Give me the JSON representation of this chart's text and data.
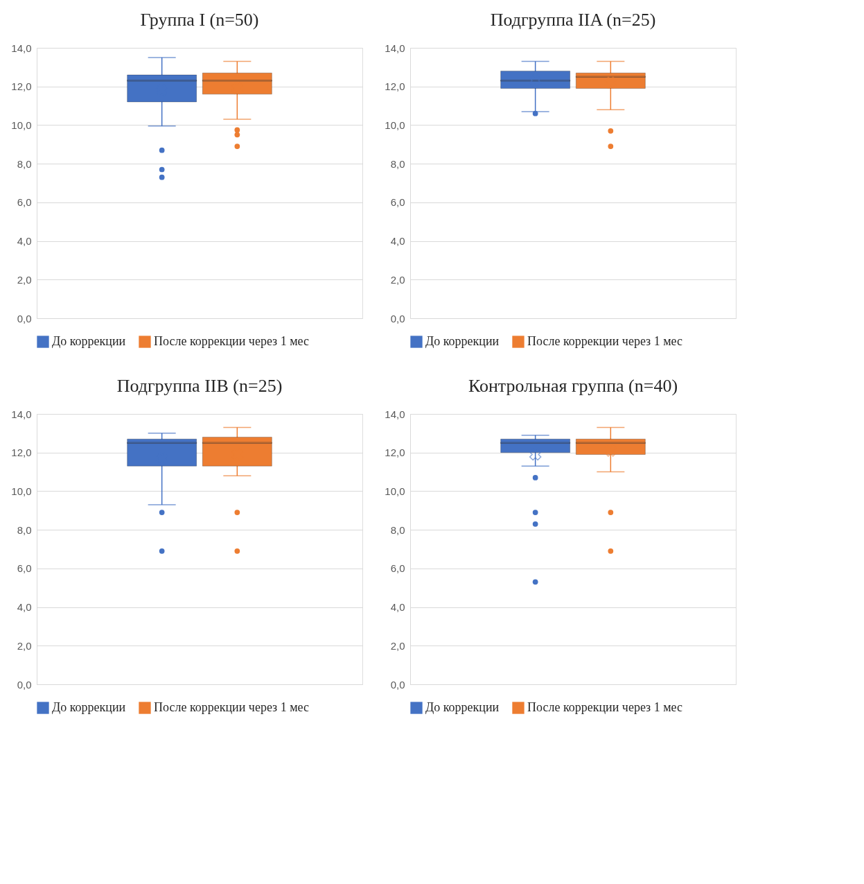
{
  "chart_data": [
    {
      "type": "box",
      "title": "Группа I (n=50)",
      "categories": [
        null
      ],
      "ylim": [
        0,
        14
      ],
      "yticks": [
        {
          "value": 0,
          "label": "0,0"
        },
        {
          "value": 2,
          "label": "2,0"
        },
        {
          "value": 4,
          "label": "4,0"
        },
        {
          "value": 6,
          "label": "6,0"
        },
        {
          "value": 8,
          "label": "8,0"
        },
        {
          "value": 10,
          "label": "10,0"
        },
        {
          "value": 12,
          "label": "12,0"
        },
        {
          "value": 14,
          "label": "14,0"
        }
      ],
      "grid": "y",
      "legend": "bottom",
      "tick_labels": "y",
      "series": [
        {
          "name": "До коррекции",
          "color": "#4472c4",
          "boxes": [
            {
              "low": 9.95,
              "q1": 11.2,
              "median": 12.3,
              "q3": 12.6,
              "high": 13.5,
              "mean": 11.8,
              "outliers": [
                8.7,
                7.7,
                7.3
              ]
            }
          ]
        },
        {
          "name": "После коррекции через 1 мес",
          "color": "#ed7d31",
          "boxes": [
            {
              "low": 10.3,
              "q1": 11.6,
              "median": 12.3,
              "q3": 12.7,
              "high": 13.3,
              "mean": 11.9,
              "outliers": [
                9.75,
                9.5,
                8.9
              ]
            }
          ]
        }
      ]
    },
    {
      "type": "box",
      "title": "Подгруппа IIA (n=25)",
      "categories": [
        null
      ],
      "ylim": [
        0,
        14
      ],
      "yticks": [
        {
          "value": 0,
          "label": "0,0"
        },
        {
          "value": 2,
          "label": "2,0"
        },
        {
          "value": 4,
          "label": "4,0"
        },
        {
          "value": 6,
          "label": "6,0"
        },
        {
          "value": 8,
          "label": "8,0"
        },
        {
          "value": 10,
          "label": "10,0"
        },
        {
          "value": 12,
          "label": "12,0"
        },
        {
          "value": 14,
          "label": "14,0"
        }
      ],
      "grid": "y",
      "legend": "bottom",
      "tick_labels": "y",
      "series": [
        {
          "name": "До коррекции",
          "color": "#4472c4",
          "boxes": [
            {
              "low": 10.7,
              "q1": 11.9,
              "median": 12.3,
              "q3": 12.8,
              "high": 13.3,
              "mean": 12.3,
              "outliers": [
                10.6
              ]
            }
          ]
        },
        {
          "name": "После коррекции через 1 мес",
          "color": "#ed7d31",
          "boxes": [
            {
              "low": 10.8,
              "q1": 11.9,
              "median": 12.5,
              "q3": 12.7,
              "high": 13.3,
              "mean": 12.2,
              "outliers": [
                9.7,
                8.9
              ]
            }
          ]
        }
      ]
    },
    {
      "type": "box",
      "title": "Подгруппа IIB (n=25)",
      "categories": [
        null
      ],
      "ylim": [
        0,
        14
      ],
      "yticks": [
        {
          "value": 0,
          "label": "0,0"
        },
        {
          "value": 2,
          "label": "2,0"
        },
        {
          "value": 4,
          "label": "4,0"
        },
        {
          "value": 6,
          "label": "6,0"
        },
        {
          "value": 8,
          "label": "8,0"
        },
        {
          "value": 10,
          "label": "10,0"
        },
        {
          "value": 12,
          "label": "12,0"
        },
        {
          "value": 14,
          "label": "14,0"
        }
      ],
      "grid": "y",
      "legend": "bottom",
      "tick_labels": "y",
      "series": [
        {
          "name": "До коррекции",
          "color": "#4472c4",
          "boxes": [
            {
              "low": 9.3,
              "q1": 11.3,
              "median": 12.5,
              "q3": 12.7,
              "high": 13.0,
              "mean": 11.7,
              "outliers": [
                8.9,
                6.9
              ]
            }
          ]
        },
        {
          "name": "После коррекции через 1 мес",
          "color": "#ed7d31",
          "boxes": [
            {
              "low": 10.8,
              "q1": 11.3,
              "median": 12.5,
              "q3": 12.8,
              "high": 13.3,
              "mean": 11.9,
              "outliers": [
                8.9,
                6.9
              ]
            }
          ]
        }
      ]
    },
    {
      "type": "box",
      "title": "Контрольная группа (n=40)",
      "categories": [
        null
      ],
      "ylim": [
        0,
        14
      ],
      "yticks": [
        {
          "value": 0,
          "label": "0,0"
        },
        {
          "value": 2,
          "label": "2,0"
        },
        {
          "value": 4,
          "label": "4,0"
        },
        {
          "value": 6,
          "label": "6,0"
        },
        {
          "value": 8,
          "label": "8,0"
        },
        {
          "value": 10,
          "label": "10,0"
        },
        {
          "value": 12,
          "label": "12,0"
        },
        {
          "value": 14,
          "label": "14,0"
        }
      ],
      "grid": "y",
      "legend": "bottom",
      "tick_labels": "y",
      "series": [
        {
          "name": "До коррекции",
          "color": "#4472c4",
          "boxes": [
            {
              "low": 11.3,
              "q1": 12.0,
              "median": 12.5,
              "q3": 12.7,
              "high": 12.9,
              "mean": 11.9,
              "outliers": [
                10.7,
                8.9,
                8.3,
                5.3
              ]
            }
          ]
        },
        {
          "name": "После коррекции через 1 мес",
          "color": "#ed7d31",
          "boxes": [
            {
              "low": 11.0,
              "q1": 11.9,
              "median": 12.5,
              "q3": 12.7,
              "high": 13.3,
              "mean": 12.1,
              "outliers": [
                8.9,
                6.9
              ]
            }
          ]
        }
      ]
    }
  ]
}
